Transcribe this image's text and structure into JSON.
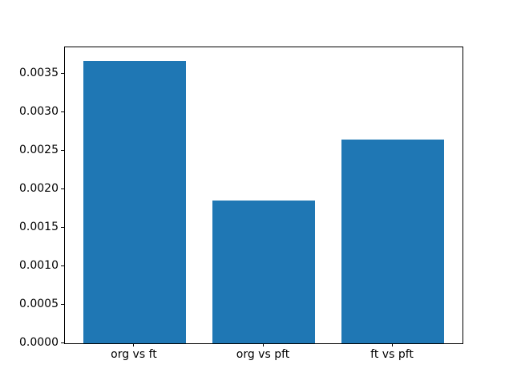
{
  "chart_data": {
    "type": "bar",
    "title": "",
    "xlabel": "",
    "ylabel": "",
    "categories": [
      "org vs ft",
      "org vs pft",
      "ft vs pft"
    ],
    "values": [
      0.00367,
      0.00185,
      0.00265
    ],
    "bar_color": "#1f77b4",
    "ylim": [
      0,
      0.003844
    ],
    "xlim": [
      -0.54,
      2.54
    ],
    "bar_width_units": 0.8,
    "yticks": [
      {
        "value": 0.0,
        "label": "0.0000"
      },
      {
        "value": 0.0005,
        "label": "0.0005"
      },
      {
        "value": 0.001,
        "label": "0.0010"
      },
      {
        "value": 0.0015,
        "label": "0.0015"
      },
      {
        "value": 0.002,
        "label": "0.0020"
      },
      {
        "value": 0.0025,
        "label": "0.0025"
      },
      {
        "value": 0.003,
        "label": "0.0030"
      },
      {
        "value": 0.0035,
        "label": "0.0035"
      }
    ],
    "grid": false,
    "legend": "none"
  }
}
